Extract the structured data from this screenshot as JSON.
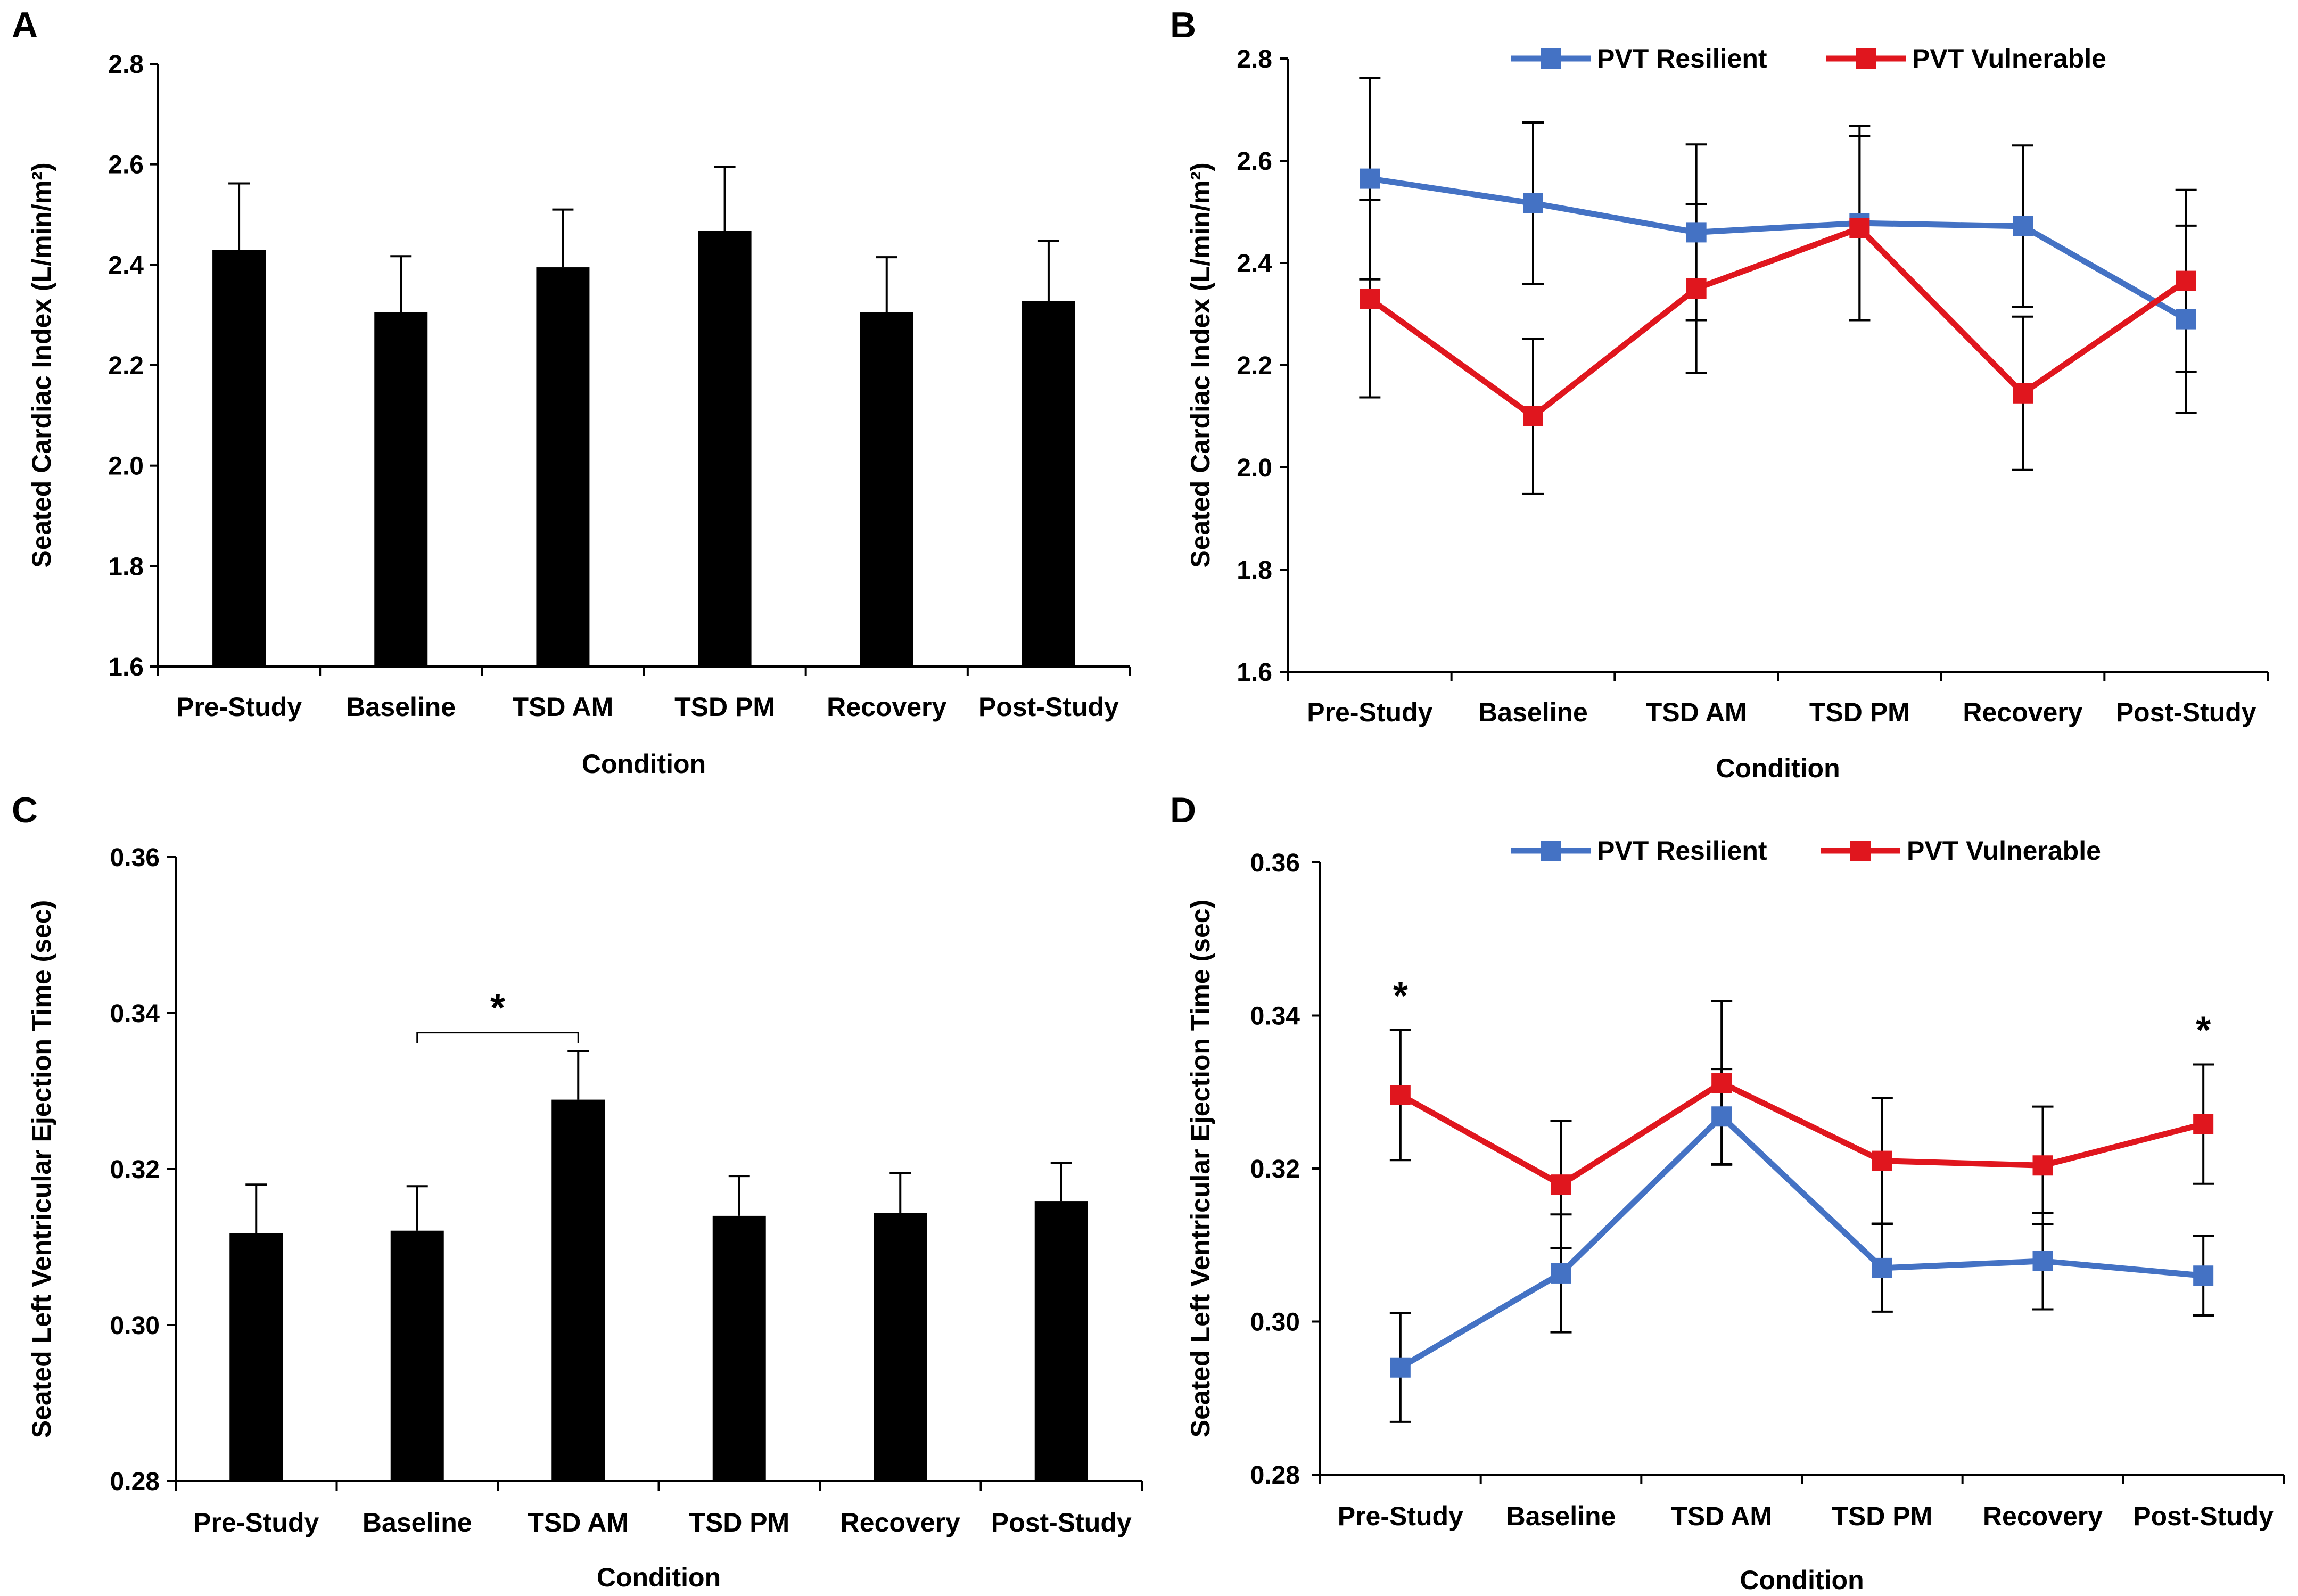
{
  "chart_data": [
    {
      "panel": "A",
      "type": "bar",
      "categories": [
        "Pre-Study",
        "Baseline",
        "TSD AM",
        "TSD PM",
        "Recovery",
        "Post-Study"
      ],
      "values": [
        2.43,
        2.305,
        2.395,
        2.468,
        2.305,
        2.328
      ],
      "errors": [
        0.132,
        0.112,
        0.115,
        0.127,
        0.11,
        0.12
      ],
      "xlabel": "Condition",
      "ylabel": "Seated Cardiac Index (L/min/m²)",
      "ylim": [
        1.6,
        2.8
      ],
      "yticks": [
        "1.6",
        "1.8",
        "2.0",
        "2.2",
        "2.4",
        "2.6",
        "2.8"
      ],
      "bar_color": "#000000"
    },
    {
      "panel": "B",
      "type": "line",
      "categories": [
        "Pre-Study",
        "Baseline",
        "TSD AM",
        "TSD PM",
        "Recovery",
        "Post-Study"
      ],
      "series": [
        {
          "name": "PVT Resilient",
          "color": "#4472C4",
          "values": [
            2.565,
            2.517,
            2.46,
            2.478,
            2.472,
            2.29
          ],
          "errors": [
            0.197,
            0.158,
            0.172,
            0.19,
            0.158,
            0.183
          ]
        },
        {
          "name": "PVT Vulnerable",
          "color": "#E0161E",
          "values": [
            2.33,
            2.1,
            2.35,
            2.468,
            2.145,
            2.365
          ],
          "errors": [
            0.193,
            0.152,
            0.165,
            0.18,
            0.15,
            0.178
          ]
        }
      ],
      "xlabel": "Condition",
      "ylabel": "Seated Cardiac Index (L/min/m²)",
      "ylim": [
        1.6,
        2.8
      ],
      "yticks": [
        "1.6",
        "1.8",
        "2.0",
        "2.2",
        "2.4",
        "2.6",
        "2.8"
      ],
      "legend": "top"
    },
    {
      "panel": "C",
      "type": "bar",
      "categories": [
        "Pre-Study",
        "Baseline",
        "TSD AM",
        "TSD PM",
        "Recovery",
        "Post-Study"
      ],
      "values": [
        0.3118,
        0.3121,
        0.3289,
        0.314,
        0.3144,
        0.3159
      ],
      "errors": [
        0.0062,
        0.0057,
        0.0062,
        0.0051,
        0.0051,
        0.0049
      ],
      "xlabel": "Condition",
      "ylabel": "Seated Left Ventricular Ejection Time (sec)",
      "ylim": [
        0.28,
        0.36
      ],
      "yticks": [
        "0.28",
        "0.30",
        "0.32",
        "0.34",
        "0.36"
      ],
      "bar_color": "#000000",
      "annotation": {
        "text": "*",
        "from_category": "Baseline",
        "to_category": "TSD AM"
      }
    },
    {
      "panel": "D",
      "type": "line",
      "categories": [
        "Pre-Study",
        "Baseline",
        "TSD AM",
        "TSD PM",
        "Recovery",
        "Post-Study"
      ],
      "series": [
        {
          "name": "PVT Resilient",
          "color": "#4472C4",
          "values": [
            0.294,
            0.3063,
            0.3268,
            0.307,
            0.3079,
            0.306
          ],
          "errors": [
            0.0071,
            0.0077,
            0.0062,
            0.0057,
            0.0063,
            0.0052
          ]
        },
        {
          "name": "PVT Vulnerable",
          "color": "#E0161E",
          "values": [
            0.3296,
            0.3179,
            0.3312,
            0.321,
            0.3204,
            0.3258
          ],
          "errors": [
            0.0085,
            0.0083,
            0.0107,
            0.0082,
            0.0077,
            0.0078
          ]
        }
      ],
      "xlabel": "Condition",
      "ylabel": "Seated Left Ventricular Ejection Time (sec)",
      "ylim": [
        0.28,
        0.36
      ],
      "yticks": [
        "0.28",
        "0.30",
        "0.32",
        "0.34",
        "0.36"
      ],
      "legend": "top",
      "annotations": [
        {
          "text": "*",
          "category": "Pre-Study"
        },
        {
          "text": "*",
          "category": "Post-Study"
        }
      ]
    }
  ]
}
